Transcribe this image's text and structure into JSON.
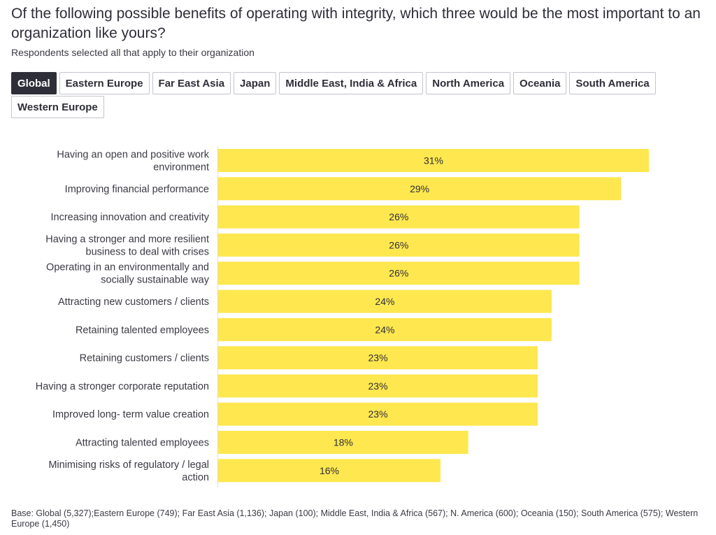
{
  "header": {
    "title": "Of the following possible benefits of operating with integrity, which three would be the most important to an organization like yours?",
    "subtitle": "Respondents selected all that apply to their organization"
  },
  "tabs": [
    {
      "label": "Global",
      "active": true
    },
    {
      "label": "Eastern Europe",
      "active": false
    },
    {
      "label": "Far East Asia",
      "active": false
    },
    {
      "label": "Japan",
      "active": false
    },
    {
      "label": "Middle East, India & Africa",
      "active": false
    },
    {
      "label": "North America",
      "active": false
    },
    {
      "label": "Oceania",
      "active": false
    },
    {
      "label": "South America",
      "active": false
    },
    {
      "label": "Western Europe",
      "active": false
    }
  ],
  "colors": {
    "bar": "#ffe74f",
    "axis": "#dcdce0",
    "active_tab": "#2e2e38"
  },
  "chart_data": {
    "type": "bar",
    "orientation": "horizontal",
    "title": "",
    "xlabel": "",
    "ylabel": "",
    "xlim": [
      0,
      31
    ],
    "grid": false,
    "categories": [
      [
        "Having an open and positive work",
        "environment"
      ],
      [
        "Improving financial performance"
      ],
      [
        "Increasing innovation and creativity"
      ],
      [
        "Having a stronger and more resilient",
        "business to deal with crises"
      ],
      [
        "Operating in an environmentally and",
        "socially sustainable way"
      ],
      [
        "Attracting new customers / clients"
      ],
      [
        "Retaining talented employees"
      ],
      [
        "Retaining customers / clients"
      ],
      [
        "Having a stronger corporate reputation"
      ],
      [
        "Improved long- term value creation"
      ],
      [
        "Attracting talented employees"
      ],
      [
        "Minimising risks of regulatory / legal",
        "action"
      ]
    ],
    "values": [
      31,
      29,
      26,
      26,
      26,
      24,
      24,
      23,
      23,
      23,
      18,
      16
    ],
    "value_labels": [
      "31%",
      "29%",
      "26%",
      "26%",
      "26%",
      "24%",
      "24%",
      "23%",
      "23%",
      "23%",
      "18%",
      "16%"
    ]
  },
  "footnote": "Base: Global (5,327);Eastern Europe (749); Far East Asia (1,136); Japan (100); Middle East, India & Africa (567); N. America (600); Oceania (150); South America (575); Western Europe (1,450)"
}
